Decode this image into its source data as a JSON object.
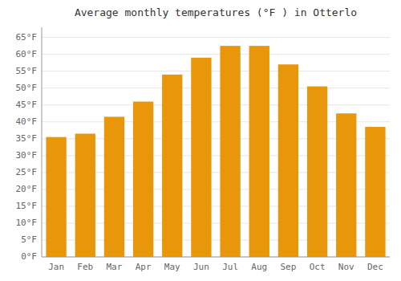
{
  "chart_data": {
    "type": "bar",
    "title": "Average monthly temperatures (°F ) in Otterlo",
    "categories": [
      "Jan",
      "Feb",
      "Mar",
      "Apr",
      "May",
      "Jun",
      "Jul",
      "Aug",
      "Sep",
      "Oct",
      "Nov",
      "Dec"
    ],
    "values": [
      35.5,
      36.5,
      41.5,
      46.0,
      54.0,
      59.0,
      62.5,
      62.5,
      57.0,
      50.5,
      42.5,
      38.5
    ],
    "color": "#E8960A",
    "ylim": [
      0,
      68
    ],
    "yticks": [
      {
        "value": 0,
        "label": "0°F"
      },
      {
        "value": 5,
        "label": "5°F"
      },
      {
        "value": 10,
        "label": "10°F"
      },
      {
        "value": 15,
        "label": "15°F"
      },
      {
        "value": 20,
        "label": "20°F"
      },
      {
        "value": 25,
        "label": "25°F"
      },
      {
        "value": 30,
        "label": "30°F"
      },
      {
        "value": 35,
        "label": "35°F"
      },
      {
        "value": 40,
        "label": "40°F"
      },
      {
        "value": 45,
        "label": "45°F"
      },
      {
        "value": 50,
        "label": "50°F"
      },
      {
        "value": 55,
        "label": "55°F"
      },
      {
        "value": 60,
        "label": "60°F"
      },
      {
        "value": 65,
        "label": "65°F"
      }
    ],
    "grid": true
  }
}
